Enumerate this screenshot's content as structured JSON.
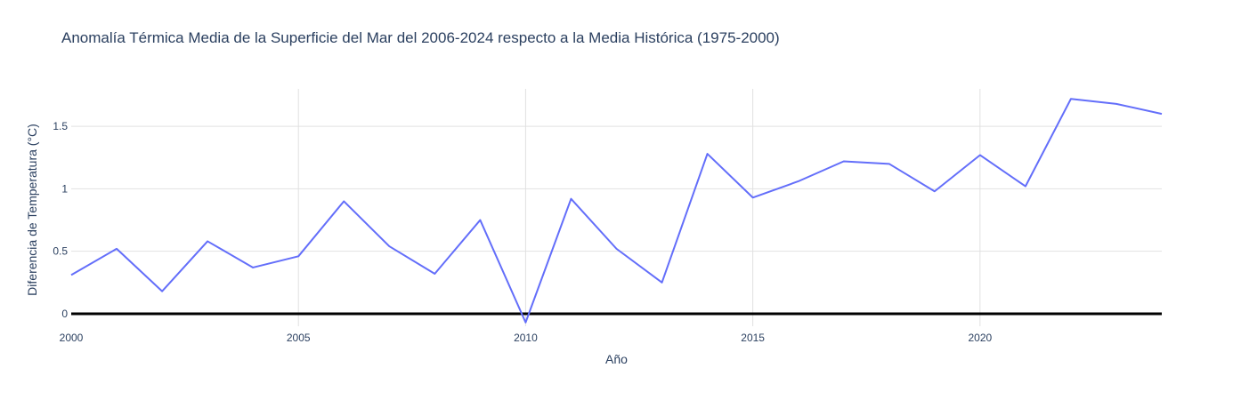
{
  "chart_data": {
    "type": "line",
    "title": "Anomalía Térmica Media de la Superficie del Mar del 2006-2024 respecto a la Media Histórica (1975-2000)",
    "xlabel": "Año",
    "ylabel": "Diferencia de Temperatura (°C)",
    "x": [
      2000,
      2001,
      2002,
      2003,
      2004,
      2005,
      2006,
      2007,
      2008,
      2009,
      2010,
      2011,
      2012,
      2013,
      2014,
      2015,
      2016,
      2017,
      2018,
      2019,
      2020,
      2021,
      2022,
      2023,
      2024
    ],
    "series": [
      {
        "values": [
          0.31,
          0.52,
          0.18,
          0.58,
          0.37,
          0.46,
          0.9,
          0.54,
          0.32,
          0.75,
          -0.07,
          0.92,
          0.52,
          0.25,
          1.28,
          0.93,
          1.06,
          1.22,
          1.2,
          0.98,
          1.27,
          1.02,
          1.72,
          1.68,
          1.6
        ],
        "color": "#636efa"
      }
    ],
    "zero_line_color": "#000000",
    "xlim": [
      2000,
      2024
    ],
    "ylim": [
      -0.1,
      1.8
    ],
    "xticks": [
      2000,
      2005,
      2010,
      2015,
      2020
    ],
    "yticks": [
      0,
      0.5,
      1,
      1.5
    ],
    "ytick_labels": [
      "0",
      "0.5",
      "1",
      "1.5"
    ],
    "grid": true,
    "legend": "none"
  }
}
